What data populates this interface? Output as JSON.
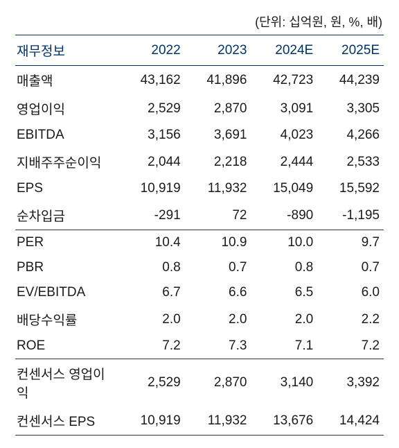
{
  "unit_note": "(단위: 십억원, 원, %, 배)",
  "table": {
    "headers": [
      "재무정보",
      "2022",
      "2023",
      "2024E",
      "2025E"
    ],
    "rows": [
      {
        "cells": [
          "매출액",
          "43,162",
          "41,896",
          "42,723",
          "44,239"
        ],
        "sep": false
      },
      {
        "cells": [
          "영업이익",
          "2,529",
          "2,870",
          "3,091",
          "3,305"
        ],
        "sep": false
      },
      {
        "cells": [
          "EBITDA",
          "3,156",
          "3,691",
          "4,023",
          "4,266"
        ],
        "sep": false
      },
      {
        "cells": [
          "지배주주순이익",
          "2,044",
          "2,218",
          "2,444",
          "2,533"
        ],
        "sep": false
      },
      {
        "cells": [
          "EPS",
          "10,919",
          "11,932",
          "15,049",
          "15,592"
        ],
        "sep": false
      },
      {
        "cells": [
          "순차입금",
          "-291",
          "72",
          "-890",
          "-1,195"
        ],
        "sep": false
      },
      {
        "cells": [
          "PER",
          "10.4",
          "10.9",
          "10.0",
          "9.7"
        ],
        "sep": true
      },
      {
        "cells": [
          "PBR",
          "0.8",
          "0.7",
          "0.8",
          "0.7"
        ],
        "sep": false
      },
      {
        "cells": [
          "EV/EBITDA",
          "6.7",
          "6.6",
          "6.5",
          "6.0"
        ],
        "sep": false
      },
      {
        "cells": [
          "배당수익률",
          "2.0",
          "2.0",
          "2.0",
          "2.2"
        ],
        "sep": false
      },
      {
        "cells": [
          "ROE",
          "7.2",
          "7.3",
          "7.1",
          "7.2"
        ],
        "sep": false
      },
      {
        "cells": [
          "컨센서스 영업이익",
          "2,529",
          "2,870",
          "3,140",
          "3,392"
        ],
        "sep": true
      },
      {
        "cells": [
          "컨센서스 EPS",
          "10,919",
          "11,932",
          "13,676",
          "14,424"
        ],
        "sep": false
      }
    ]
  },
  "style": {
    "header_color": "#003366",
    "text_color": "#1a1a1a",
    "border_color_heavy": "#003366",
    "border_color_light": "#333333",
    "background_color": "#ffffff",
    "font_size_body": 19,
    "font_size_unit": 18
  }
}
